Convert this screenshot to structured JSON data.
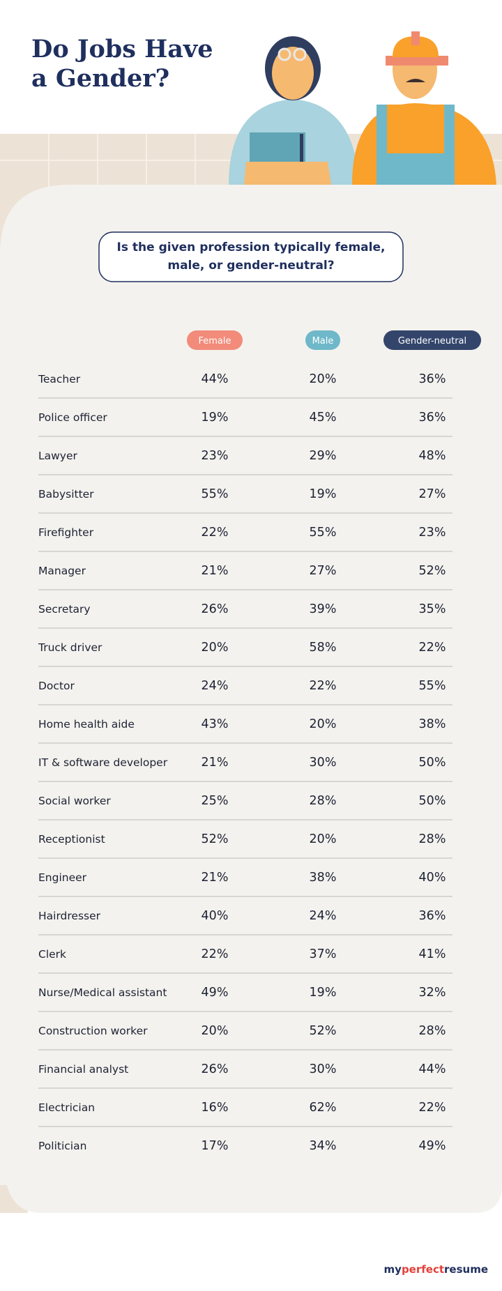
{
  "header": {
    "title_lines": [
      "Do Jobs Have",
      "a Gender?"
    ]
  },
  "question_lines": [
    "Is the given profession typically female,",
    "male, or gender-neutral?"
  ],
  "legend": [
    "Female",
    "Male",
    "Gender-neutral"
  ],
  "table": {
    "rows": [
      [
        "Teacher",
        "44%",
        "20%",
        "36%"
      ],
      [
        "Police officer",
        "19%",
        "45%",
        "36%"
      ],
      [
        "Lawyer",
        "23%",
        "29%",
        "48%"
      ],
      [
        "Babysitter",
        "55%",
        "19%",
        "27%"
      ],
      [
        "Firefighter",
        "22%",
        "55%",
        "23%"
      ],
      [
        "Manager",
        "21%",
        "27%",
        "52%"
      ],
      [
        "Secretary",
        "26%",
        "39%",
        "35%"
      ],
      [
        "Truck driver",
        "20%",
        "58%",
        "22%"
      ],
      [
        "Doctor",
        "24%",
        "22%",
        "55%"
      ],
      [
        "Home health aide",
        "43%",
        "20%",
        "38%"
      ],
      [
        "IT & software developer",
        "21%",
        "30%",
        "50%"
      ],
      [
        "Social worker",
        "25%",
        "28%",
        "50%"
      ],
      [
        "Receptionist",
        "52%",
        "20%",
        "28%"
      ],
      [
        "Engineer",
        "21%",
        "38%",
        "40%"
      ],
      [
        "Hairdresser",
        "40%",
        "24%",
        "36%"
      ],
      [
        "Clerk",
        "22%",
        "37%",
        "41%"
      ],
      [
        "Nurse/Medical assistant",
        "49%",
        "19%",
        "32%"
      ],
      [
        "Construction worker",
        "20%",
        "52%",
        "28%"
      ],
      [
        "Financial analyst",
        "26%",
        "30%",
        "44%"
      ],
      [
        "Electrician",
        "16%",
        "62%",
        "22%"
      ],
      [
        "Politician",
        "17%",
        "34%",
        "49%"
      ]
    ]
  },
  "logo": {
    "parts": [
      "my",
      "perfect",
      "resume"
    ]
  }
}
